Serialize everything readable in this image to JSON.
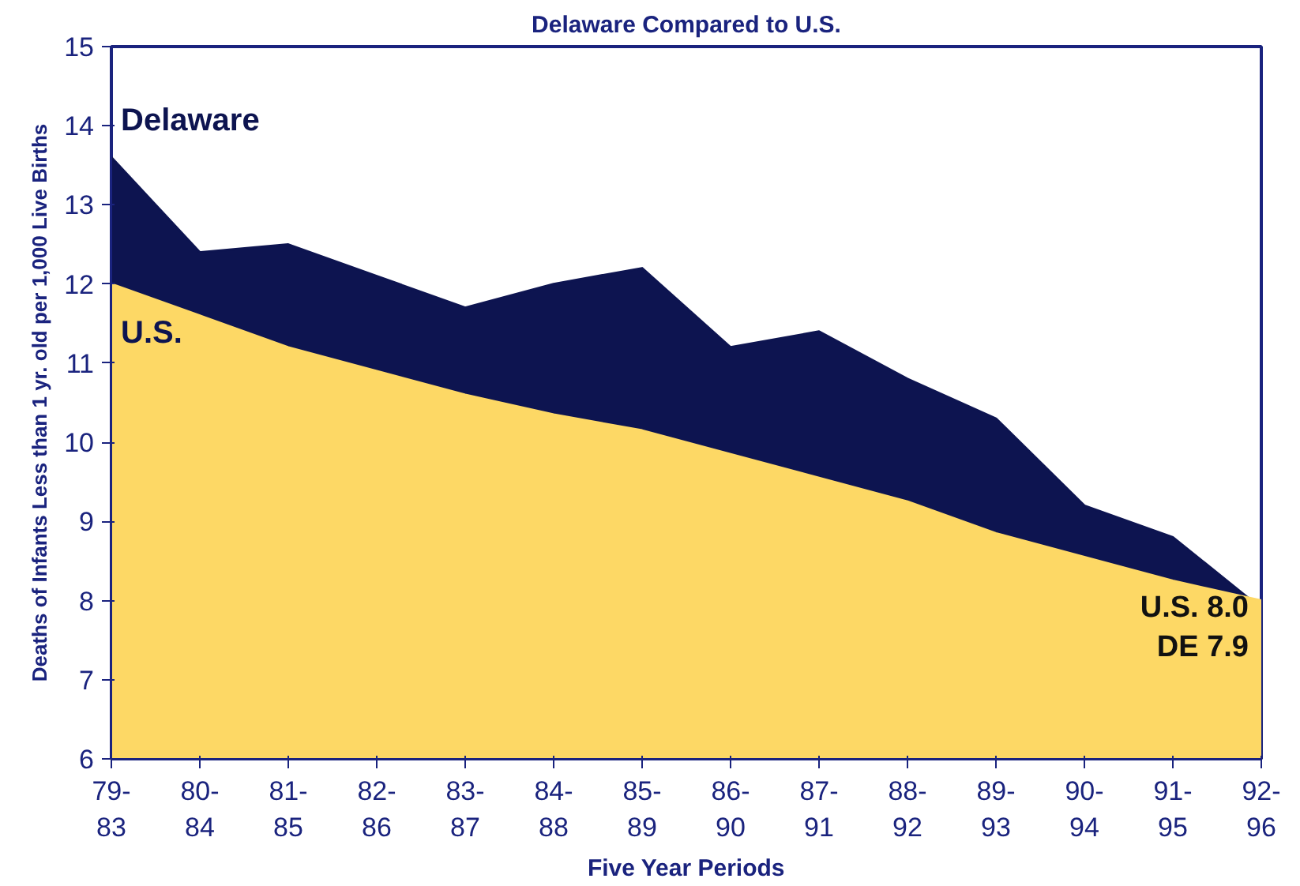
{
  "chart_data": {
    "type": "area",
    "title": "Delaware Compared to U.S.",
    "xlabel": "Five Year Periods",
    "ylabel": "Deaths of Infants Less than 1 yr. old per 1,000 Live Births",
    "categories": [
      "79-\n83",
      "80-\n84",
      "81-\n85",
      "82-\n86",
      "83-\n87",
      "84-\n88",
      "85-\n89",
      "86-\n90",
      "87-\n91",
      "88-\n92",
      "89-\n93",
      "90-\n94",
      "91-\n95",
      "92-\n96"
    ],
    "series": [
      {
        "name": "Delaware",
        "color": "#0d1450",
        "values": [
          13.6,
          12.4,
          12.5,
          12.1,
          11.7,
          12.0,
          12.2,
          11.2,
          11.4,
          10.8,
          10.3,
          9.2,
          8.8,
          7.9
        ]
      },
      {
        "name": "U.S.",
        "color": "#fdd865",
        "values": [
          12.0,
          11.6,
          11.2,
          10.9,
          10.6,
          10.35,
          10.15,
          9.85,
          9.55,
          9.25,
          8.85,
          8.55,
          8.25,
          8.0
        ]
      }
    ],
    "ylim": [
      6,
      15
    ],
    "yticks": [
      6,
      7,
      8,
      9,
      10,
      11,
      12,
      13,
      14,
      15
    ],
    "grid": false,
    "annotations": [
      "U.S. 8.0\nDE 7.9"
    ]
  }
}
